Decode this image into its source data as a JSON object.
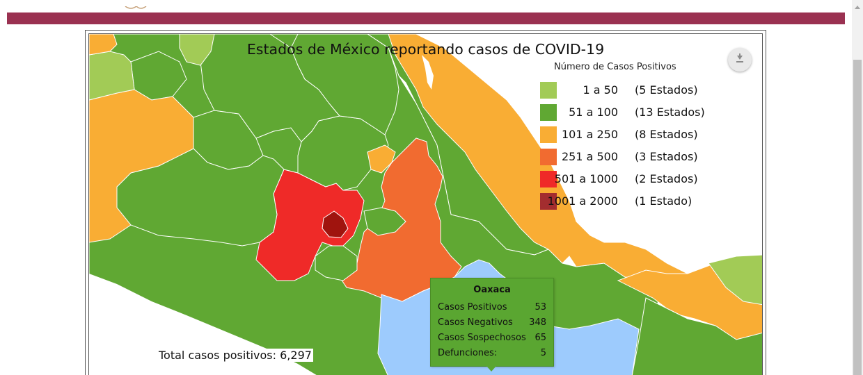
{
  "map": {
    "title": "Estados de México reportando casos de COVID-19",
    "legend": {
      "title": "Número de Casos Positivos",
      "items": [
        {
          "range": "1 a 50",
          "count": "(5 Estados)",
          "color": "#a2cb56"
        },
        {
          "range": "51 a 100",
          "count": "(13 Estados)",
          "color": "#60a833"
        },
        {
          "range": "101 a 250",
          "count": "(8 Estados)",
          "color": "#f9ad34"
        },
        {
          "range": "251 a 500",
          "count": "(3 Estados)",
          "color": "#f16b30"
        },
        {
          "range": "501 a 1000",
          "count": "(2 Estados)",
          "color": "#ef2a28"
        },
        {
          "range": "1001 a 2000",
          "count": "(1 Estado)",
          "color": "#a32d2f"
        }
      ]
    },
    "tooltip": {
      "state": "Oaxaca",
      "rows": [
        {
          "label": "Casos Positivos",
          "value": "53"
        },
        {
          "label": "Casos Negativos",
          "value": "348"
        },
        {
          "label": "Casos Sospechosos",
          "value": "65"
        },
        {
          "label": "Defunciones:",
          "value": "5"
        }
      ]
    },
    "total": "Total casos positivos: 6,297",
    "colors": {
      "banner": "#9a3151",
      "water": "#ffffff",
      "highlight": "#9dcbfd",
      "border": "#ffffff"
    },
    "icons": {
      "download": "download-icon"
    }
  }
}
